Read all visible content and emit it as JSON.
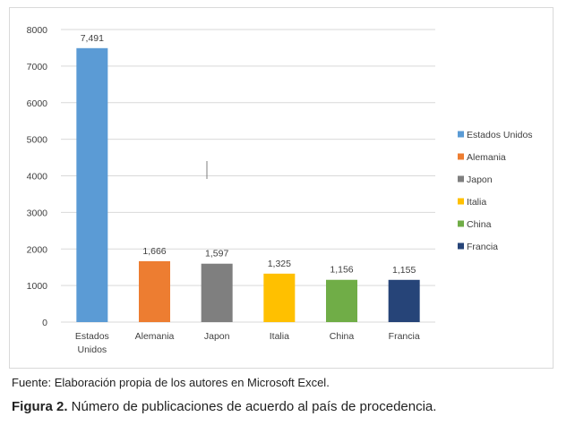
{
  "chart_data": {
    "type": "bar",
    "categories": [
      "Estados Unidos",
      "Alemania",
      "Japon",
      "Italia",
      "China",
      "Francia"
    ],
    "category_labels": [
      [
        "Estados",
        "Unidos"
      ],
      [
        "Alemania"
      ],
      [
        "Japon"
      ],
      [
        "Italia"
      ],
      [
        "China"
      ],
      [
        "Francia"
      ]
    ],
    "values": [
      7491,
      1666,
      1597,
      1325,
      1156,
      1155
    ],
    "value_labels": [
      "7,491",
      "1,666",
      "1,597",
      "1,325",
      "1,156",
      "1,155"
    ],
    "colors": [
      "#5b9bd5",
      "#ed7d31",
      "#7f7f7f",
      "#ffc000",
      "#70ad47",
      "#264478"
    ],
    "ylim": [
      0,
      8000
    ],
    "yticks": [
      0,
      1000,
      2000,
      3000,
      4000,
      5000,
      6000,
      7000,
      8000
    ],
    "grid": true,
    "legend_position": "right",
    "gridline_color": "#d9d9d9",
    "text_color": "#404040"
  },
  "source_note": "Fuente: Elaboración propia de los autores en Microsoft Excel.",
  "caption": {
    "number": "Figura 2.",
    "text": " Número de publicaciones de acuerdo al país de procedencia."
  }
}
